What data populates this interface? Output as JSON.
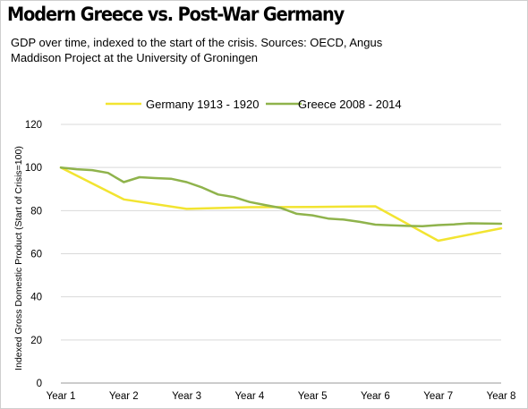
{
  "title": "Modern Greece vs. Post-War Germany",
  "subtitle": "GDP over time, indexed to the start of the crisis. Sources: OECD, Angus Maddison Project at the University of Groningen",
  "chart_data": {
    "type": "line",
    "title": "Modern Greece vs. Post-War Germany",
    "subtitle": "GDP over time, indexed to the start of the crisis. Sources: OECD, Angus Maddison Project at the University of Groningen",
    "xlabel": "",
    "ylabel": "Indexed Gross Domestic Product (Start of Crisis=100)",
    "categories": [
      "Year 1",
      "Year 2",
      "Year 3",
      "Year 4",
      "Year 5",
      "Year 6",
      "Year 7",
      "Year 8"
    ],
    "ylim": [
      0,
      120
    ],
    "yticks": [
      "0",
      "20",
      "40",
      "60",
      "80",
      "100",
      "120"
    ],
    "grid": "horizontal",
    "legend": "top",
    "series": [
      {
        "name": "Germany 1913 - 1920",
        "color": "#f2e431",
        "x": [
          1,
          2,
          3,
          4,
          5,
          6,
          7,
          8
        ],
        "values": [
          100,
          85.2,
          80.8,
          81.6,
          81.7,
          82,
          66,
          71.8
        ]
      },
      {
        "name": "Greece 2008 - 2014",
        "color": "#8fb34c",
        "x": [
          1,
          1.25,
          1.5,
          1.75,
          2,
          2.25,
          2.5,
          2.75,
          3,
          3.25,
          3.5,
          3.75,
          4,
          4.25,
          4.5,
          4.75,
          5,
          5.25,
          5.5,
          5.75,
          6,
          6.25,
          6.5,
          6.75,
          7,
          7.25,
          7.5,
          7.75,
          8
        ],
        "values": [
          100,
          99.2,
          98.8,
          97.5,
          93.2,
          95.5,
          95.1,
          94.8,
          93.2,
          90.7,
          87.5,
          86.3,
          84,
          82.6,
          81.2,
          78.5,
          77.8,
          76.3,
          75.8,
          74.8,
          73.5,
          73.2,
          72.9,
          72.8,
          73.3,
          73.6,
          74.1,
          74,
          73.9
        ]
      }
    ]
  }
}
